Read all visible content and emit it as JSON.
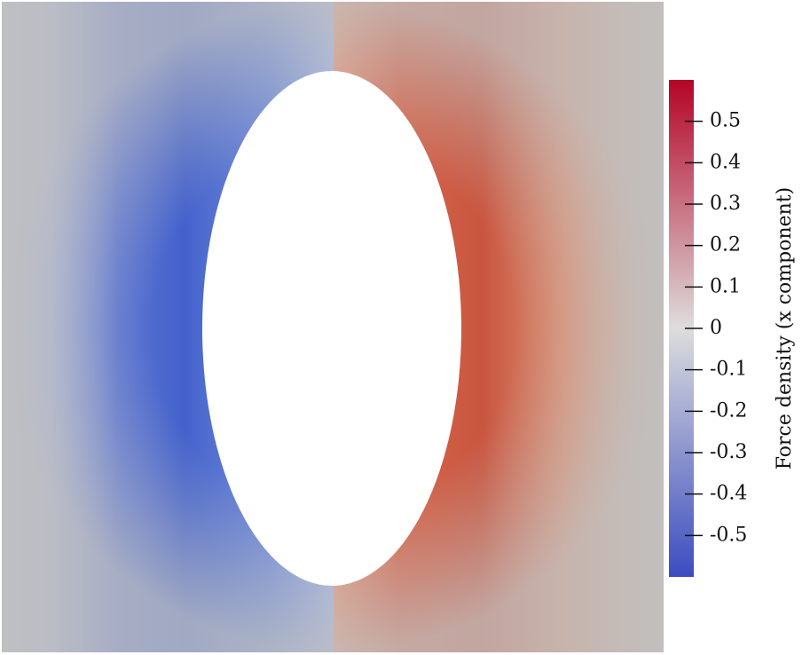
{
  "chart_data": {
    "type": "field",
    "colorbar_label": "Force density (x component)",
    "clim": [
      -0.6,
      0.6
    ],
    "cticks": [
      0.5,
      0.4,
      0.3,
      0.2,
      0.1,
      0,
      -0.1,
      -0.2,
      -0.3,
      -0.4,
      -0.5
    ],
    "colormap": [
      "#3b4cc0",
      "#dddddd",
      "#b40426"
    ]
  }
}
